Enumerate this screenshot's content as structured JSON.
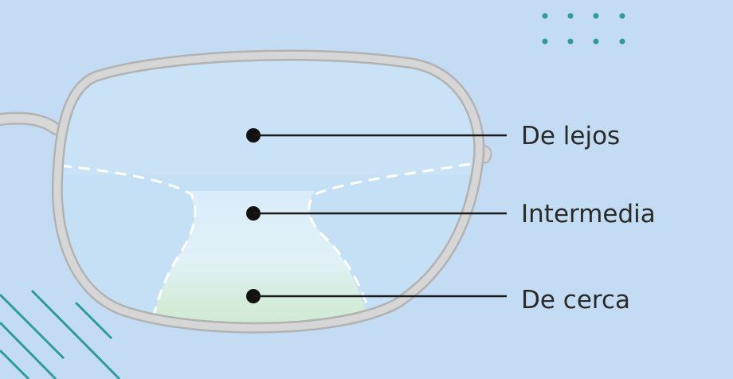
{
  "diagram": {
    "labels": [
      {
        "id": "far",
        "text": "De lejos"
      },
      {
        "id": "intermediate",
        "text": "Intermedia"
      },
      {
        "id": "near",
        "text": "De cerca"
      }
    ]
  },
  "colors": {
    "background": "#c3dcf3",
    "lens": "#c5e0f5",
    "frame": "#cfcfcf",
    "frame_edge": "#b4b4b4",
    "near_zone": "#cfe8d4",
    "intermediate_zone": "#dff0fa",
    "dots": "#2f9a9c",
    "hatch": "#2f9a9c",
    "leader": "#1a1a1a"
  }
}
